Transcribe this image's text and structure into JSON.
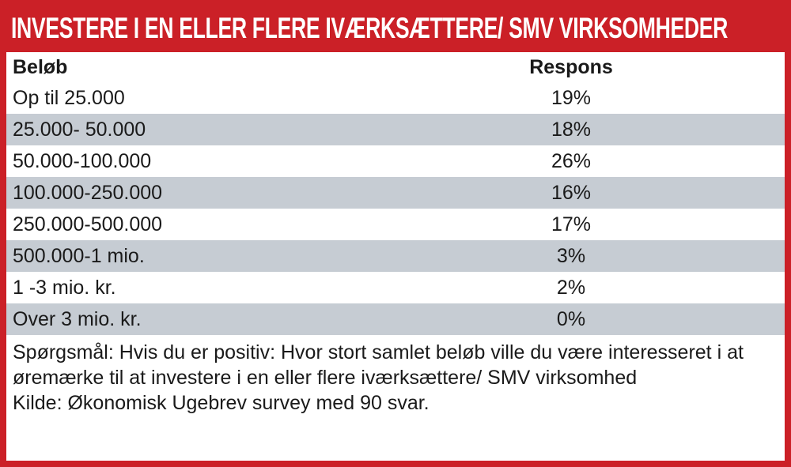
{
  "title": "INVESTERE I EN ELLER FLERE IVÆRKSÆTTERE/ SMV VIRKSOMHEDER",
  "colors": {
    "accent_red": "#cb2027",
    "row_alt_gray": "#c6ccd3",
    "text": "#1a1a1a"
  },
  "table": {
    "columns": {
      "label": "Beløb",
      "value": "Respons"
    },
    "rows": [
      {
        "label": "Op til 25.000",
        "value": "19%"
      },
      {
        "label": "25.000- 50.000",
        "value": "18%"
      },
      {
        "label": "50.000-100.000",
        "value": "26%"
      },
      {
        "label": "100.000-250.000",
        "value": "16%"
      },
      {
        "label": "250.000-500.000",
        "value": "17%"
      },
      {
        "label": "500.000-1 mio.",
        "value": "3%"
      },
      {
        "label": "1 -3 mio. kr.",
        "value": "2%"
      },
      {
        "label": "Over 3 mio. kr.",
        "value": "0%"
      }
    ]
  },
  "footer": {
    "question": "Spørgsmål: Hvis du er positiv: Hvor stort samlet beløb ville du være interesseret i at øremærke til at investere i en eller flere iværksættere/ SMV virksomhed",
    "source": "Kilde: Økonomisk Ugebrev survey med 90 svar."
  },
  "chart_data": {
    "type": "table",
    "title": "INVESTERE I EN ELLER FLERE IVÆRKSÆTTERE/ SMV VIRKSOMHEDER",
    "columns": [
      "Beløb",
      "Respons"
    ],
    "categories": [
      "Op til 25.000",
      "25.000- 50.000",
      "50.000-100.000",
      "100.000-250.000",
      "250.000-500.000",
      "500.000-1 mio.",
      "1 -3 mio. kr.",
      "Over 3 mio. kr."
    ],
    "values": [
      19,
      18,
      26,
      16,
      17,
      3,
      2,
      0
    ],
    "value_unit": "%",
    "question": "Spørgsmål: Hvis du er positiv: Hvor stort samlet beløb ville du være interesseret i at øremærke til at investere i en eller flere iværksættere/ SMV virksomhed",
    "source": "Kilde: Økonomisk Ugebrev survey med 90 svar."
  }
}
